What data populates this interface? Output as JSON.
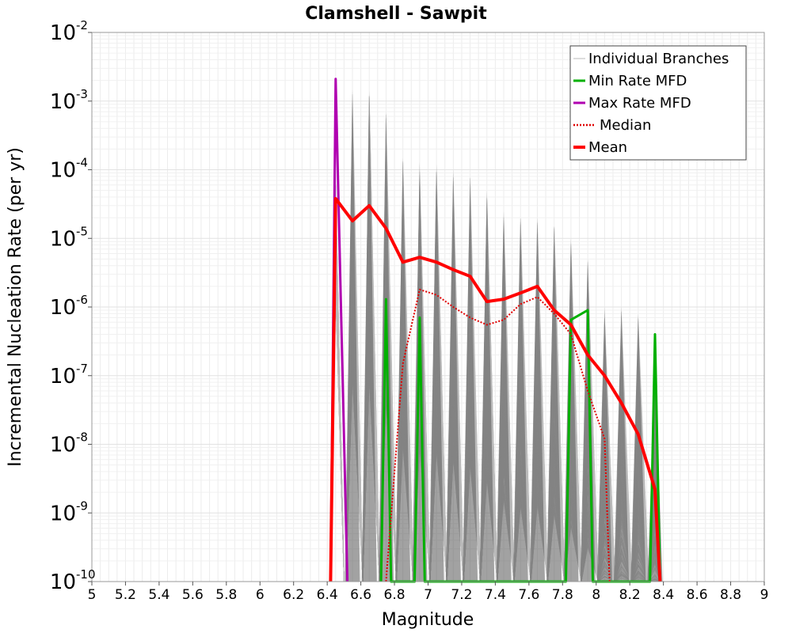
{
  "chart_data": {
    "type": "line",
    "title": "Clamshell - Sawpit",
    "xlabel": "Magnitude",
    "ylabel": "Incremental Nucleation Rate (per yr)",
    "xlim": [
      5,
      9
    ],
    "ylim": [
      1e-10,
      0.01
    ],
    "yscale": "log",
    "grid": true,
    "legend_position": "top-right",
    "x_ticks": [
      "5",
      "5.2",
      "5.4",
      "5.6",
      "5.8",
      "6",
      "6.2",
      "6.4",
      "6.6",
      "6.8",
      "7",
      "7.2",
      "7.4",
      "7.6",
      "7.8",
      "8",
      "8.2",
      "8.4",
      "8.6",
      "8.8",
      "9"
    ],
    "y_ticks": [
      {
        "base": "10",
        "exp": "-10"
      },
      {
        "base": "10",
        "exp": "-9"
      },
      {
        "base": "10",
        "exp": "-8"
      },
      {
        "base": "10",
        "exp": "-7"
      },
      {
        "base": "10",
        "exp": "-6"
      },
      {
        "base": "10",
        "exp": "-5"
      },
      {
        "base": "10",
        "exp": "-4"
      },
      {
        "base": "10",
        "exp": "-3"
      },
      {
        "base": "10",
        "exp": "-2"
      }
    ],
    "branch_peaks": {
      "x": [
        6.55,
        6.65,
        6.75,
        6.85,
        6.95,
        7.05,
        7.15,
        7.25,
        7.35,
        7.45,
        7.55,
        7.65,
        7.75,
        7.85,
        7.95,
        8.05,
        8.15,
        8.25,
        8.35
      ],
      "y": [
        0.0015,
        0.0014,
        0.0007,
        0.00015,
        0.00013,
        0.00012,
        0.0001,
        8e-05,
        5e-05,
        2.5e-05,
        2e-05,
        2e-05,
        1.5e-05,
        1e-05,
        5e-06,
        1e-06,
        1e-06,
        8e-07,
        1.5e-07
      ]
    },
    "series": [
      {
        "name": "Individual Branches",
        "color": "#bbbbbb",
        "style": "thin"
      },
      {
        "name": "Min Rate MFD",
        "color": "#00b000",
        "style": "solid",
        "x": [
          6.72,
          6.75,
          6.78,
          6.92,
          6.95,
          6.98,
          7.82,
          7.85,
          7.95,
          7.98,
          8.32,
          8.35,
          8.38
        ],
        "y": [
          1e-10,
          1.3e-06,
          1e-10,
          1e-10,
          7e-07,
          1e-10,
          1e-10,
          6.5e-07,
          9e-07,
          1e-10,
          1e-10,
          4e-07,
          1e-10
        ]
      },
      {
        "name": "Max Rate MFD",
        "color": "#b000b0",
        "style": "solid",
        "x": [
          6.42,
          6.45,
          6.52
        ],
        "y": [
          1e-10,
          0.0021,
          1e-10
        ]
      },
      {
        "name": "Median",
        "color": "#e00000",
        "style": "dotted",
        "x": [
          6.75,
          6.85,
          6.95,
          7.05,
          7.15,
          7.25,
          7.35,
          7.45,
          7.55,
          7.65,
          7.75,
          7.85,
          7.95,
          8.05,
          8.08
        ],
        "y": [
          1e-10,
          1.5e-07,
          1.8e-06,
          1.5e-06,
          1e-06,
          7e-07,
          5.5e-07,
          6.5e-07,
          1.1e-06,
          1.4e-06,
          8e-07,
          4e-07,
          6e-08,
          1.2e-08,
          1e-10
        ]
      },
      {
        "name": "Mean",
        "color": "#ff0000",
        "style": "thick",
        "x": [
          6.42,
          6.45,
          6.55,
          6.65,
          6.75,
          6.85,
          6.95,
          7.05,
          7.15,
          7.25,
          7.35,
          7.45,
          7.55,
          7.65,
          7.75,
          7.85,
          7.95,
          8.05,
          8.15,
          8.25,
          8.35,
          8.38
        ],
        "y": [
          1e-10,
          3.8e-05,
          1.8e-05,
          3e-05,
          1.4e-05,
          4.5e-06,
          5.3e-06,
          4.5e-06,
          3.5e-06,
          2.8e-06,
          1.2e-06,
          1.3e-06,
          1.6e-06,
          2e-06,
          9e-07,
          5.5e-07,
          2e-07,
          1e-07,
          4e-08,
          1.4e-08,
          2.2e-09,
          1e-10
        ]
      }
    ]
  }
}
